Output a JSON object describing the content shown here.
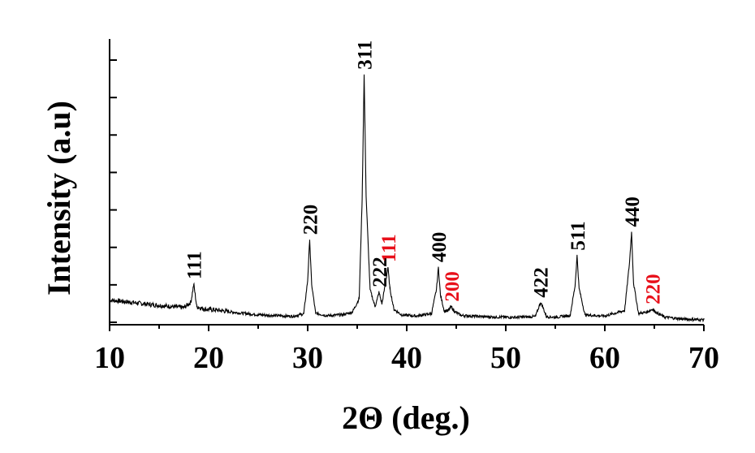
{
  "chart_data": {
    "type": "line",
    "title": "",
    "xlabel": "2Θ (deg.)",
    "ylabel": "Intensity (a.u)",
    "xlim": [
      10,
      70
    ],
    "ylim": [
      0,
      100
    ],
    "x_ticks": [
      "10",
      "20",
      "30",
      "40",
      "50",
      "60",
      "70"
    ],
    "y_tick_count": 8,
    "grid": false,
    "legend": "none",
    "series": [
      {
        "x": [
          10,
          12,
          14,
          16,
          17.5,
          18.2,
          18.5,
          18.8,
          19.5,
          21,
          23,
          25,
          27,
          28.5,
          29.6,
          30.0,
          30.2,
          30.4,
          30.8,
          32,
          33.5,
          34.5,
          35.2,
          35.5,
          35.7,
          35.9,
          36.3,
          36.8,
          37.0,
          37.2,
          37.5,
          37.9,
          38.1,
          38.3,
          38.7,
          39.5,
          41,
          42.5,
          43.0,
          43.2,
          43.4,
          43.8,
          44.2,
          44.5,
          44.8,
          45.5,
          48,
          51,
          53.0,
          53.5,
          53.7,
          54.1,
          55,
          56.5,
          57.0,
          57.2,
          57.4,
          58,
          60,
          62.0,
          62.5,
          62.7,
          62.9,
          63.4,
          64.2,
          64.8,
          65.2,
          66,
          68,
          70
        ],
        "y": [
          8.5,
          7.7,
          6.8,
          6.1,
          5.6,
          7.6,
          14.5,
          6.0,
          5.1,
          4.6,
          3.6,
          2.9,
          2.5,
          2.3,
          3.2,
          16.0,
          31.5,
          14.5,
          3.5,
          2.5,
          2.9,
          3.8,
          9.0,
          47.0,
          94.5,
          48.0,
          12.5,
          6.0,
          8.5,
          11.5,
          7.0,
          16.0,
          21.0,
          13.0,
          5.0,
          2.8,
          2.4,
          3.3,
          12.5,
          21.0,
          10.5,
          4.2,
          4.5,
          6.0,
          4.2,
          2.6,
          2.1,
          1.9,
          2.2,
          7.5,
          6.2,
          2.2,
          1.9,
          2.6,
          14.0,
          25.5,
          13.0,
          2.8,
          2.4,
          4.5,
          23.0,
          34.5,
          15.0,
          3.4,
          3.8,
          5.0,
          3.8,
          2.0,
          1.2,
          1.0
        ]
      }
    ],
    "annotations": [
      {
        "text": "111",
        "x": 18.5,
        "y": 14.5,
        "color": "#000000"
      },
      {
        "text": "220",
        "x": 30.2,
        "y": 31.5,
        "color": "#000000"
      },
      {
        "text": "311",
        "x": 35.7,
        "y": 94.5,
        "color": "#000000"
      },
      {
        "text": "222",
        "x": 37.2,
        "y": 11.5,
        "color": "#000000"
      },
      {
        "text": "111",
        "x": 38.1,
        "y": 21.0,
        "color": "#e8101a"
      },
      {
        "text": "400",
        "x": 43.2,
        "y": 21.0,
        "color": "#000000"
      },
      {
        "text": "200",
        "x": 44.5,
        "y": 6.0,
        "color": "#e8101a"
      },
      {
        "text": "422",
        "x": 53.5,
        "y": 7.5,
        "color": "#000000"
      },
      {
        "text": "511",
        "x": 57.2,
        "y": 25.5,
        "color": "#000000"
      },
      {
        "text": "440",
        "x": 62.7,
        "y": 34.5,
        "color": "#000000"
      },
      {
        "text": "220",
        "x": 64.8,
        "y": 5.0,
        "color": "#e8101a"
      }
    ]
  }
}
